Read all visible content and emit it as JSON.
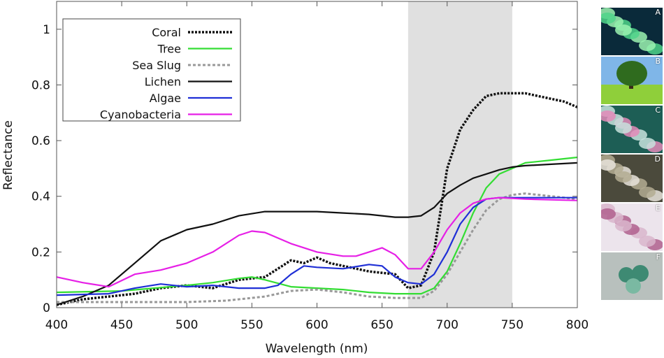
{
  "chart_data": {
    "type": "line",
    "title": "",
    "xlabel": "Wavelength (nm)",
    "ylabel": "Reflectance",
    "xlim": [
      400,
      800
    ],
    "ylim": [
      0,
      1.1
    ],
    "xticks": [
      400,
      450,
      500,
      550,
      600,
      650,
      700,
      750,
      800
    ],
    "xtick_labels": [
      "400",
      "450",
      "500",
      "550",
      "600",
      "650",
      "700",
      "750",
      "800"
    ],
    "yticks": [
      0,
      0.2,
      0.4,
      0.6,
      0.8,
      1
    ],
    "ytick_labels": [
      "0",
      "0.2",
      "0.4",
      "0.6",
      "0.8",
      "1"
    ],
    "grid": false,
    "legend_position": "top-left",
    "shaded_region": {
      "x": [
        670,
        750
      ],
      "color": "#e0e0e0"
    },
    "series": [
      {
        "name": "Coral",
        "color": "#111111",
        "style": "dotted",
        "x": [
          400,
          420,
          440,
          460,
          480,
          500,
          520,
          540,
          560,
          570,
          580,
          590,
          600,
          610,
          620,
          640,
          660,
          670,
          680,
          690,
          700,
          710,
          720,
          730,
          740,
          750,
          760,
          770,
          780,
          790,
          800
        ],
        "y": [
          0.01,
          0.03,
          0.04,
          0.05,
          0.07,
          0.08,
          0.07,
          0.1,
          0.11,
          0.14,
          0.17,
          0.16,
          0.18,
          0.16,
          0.15,
          0.13,
          0.12,
          0.07,
          0.08,
          0.2,
          0.5,
          0.64,
          0.71,
          0.76,
          0.77,
          0.77,
          0.77,
          0.76,
          0.75,
          0.74,
          0.72
        ]
      },
      {
        "name": "Tree",
        "color": "#33dd33",
        "style": "solid",
        "x": [
          400,
          450,
          500,
          520,
          540,
          550,
          560,
          580,
          600,
          620,
          640,
          660,
          680,
          690,
          700,
          710,
          720,
          730,
          740,
          750,
          760,
          780,
          800
        ],
        "y": [
          0.055,
          0.06,
          0.08,
          0.09,
          0.105,
          0.11,
          0.1,
          0.075,
          0.07,
          0.065,
          0.055,
          0.05,
          0.05,
          0.07,
          0.13,
          0.23,
          0.34,
          0.43,
          0.48,
          0.5,
          0.52,
          0.53,
          0.54
        ]
      },
      {
        "name": "Sea Slug",
        "color": "#999999",
        "style": "dashed",
        "x": [
          400,
          450,
          500,
          530,
          560,
          580,
          600,
          620,
          640,
          660,
          680,
          690,
          700,
          710,
          720,
          730,
          740,
          750,
          760,
          780,
          800
        ],
        "y": [
          0.02,
          0.02,
          0.02,
          0.025,
          0.04,
          0.06,
          0.065,
          0.055,
          0.04,
          0.035,
          0.035,
          0.06,
          0.12,
          0.2,
          0.28,
          0.35,
          0.39,
          0.405,
          0.41,
          0.4,
          0.39
        ]
      },
      {
        "name": "Lichen",
        "color": "#111111",
        "style": "solid",
        "x": [
          400,
          420,
          440,
          460,
          480,
          500,
          520,
          540,
          560,
          580,
          600,
          620,
          640,
          660,
          670,
          680,
          690,
          700,
          710,
          720,
          730,
          740,
          750,
          760,
          780,
          800
        ],
        "y": [
          0.01,
          0.04,
          0.08,
          0.16,
          0.24,
          0.28,
          0.3,
          0.33,
          0.345,
          0.345,
          0.345,
          0.34,
          0.335,
          0.325,
          0.325,
          0.33,
          0.36,
          0.41,
          0.44,
          0.465,
          0.48,
          0.495,
          0.505,
          0.51,
          0.515,
          0.52
        ]
      },
      {
        "name": "Algae",
        "color": "#1f2fd6",
        "style": "solid",
        "x": [
          400,
          440,
          460,
          480,
          500,
          520,
          540,
          560,
          570,
          580,
          590,
          600,
          620,
          640,
          650,
          660,
          670,
          680,
          690,
          700,
          710,
          720,
          730,
          740,
          760,
          800
        ],
        "y": [
          0.045,
          0.05,
          0.07,
          0.085,
          0.075,
          0.08,
          0.07,
          0.07,
          0.08,
          0.12,
          0.15,
          0.145,
          0.14,
          0.155,
          0.15,
          0.11,
          0.09,
          0.085,
          0.12,
          0.2,
          0.3,
          0.36,
          0.39,
          0.395,
          0.395,
          0.395
        ]
      },
      {
        "name": "Cyanobacteria",
        "color": "#e61fe6",
        "style": "solid",
        "x": [
          400,
          420,
          440,
          460,
          480,
          500,
          520,
          540,
          550,
          560,
          580,
          600,
          620,
          630,
          640,
          650,
          660,
          670,
          680,
          690,
          700,
          710,
          720,
          730,
          740,
          760,
          800
        ],
        "y": [
          0.11,
          0.09,
          0.075,
          0.12,
          0.135,
          0.16,
          0.2,
          0.26,
          0.275,
          0.27,
          0.23,
          0.2,
          0.185,
          0.185,
          0.2,
          0.215,
          0.19,
          0.14,
          0.14,
          0.2,
          0.28,
          0.34,
          0.375,
          0.39,
          0.395,
          0.39,
          0.385
        ]
      }
    ]
  },
  "thumbnails": [
    {
      "letter": "A",
      "subject": "coral",
      "colors": [
        "#0a2a3a",
        "#4fd48a",
        "#9bf2b0"
      ]
    },
    {
      "letter": "B",
      "subject": "tree",
      "colors": [
        "#7fb6e8",
        "#2f6b1e",
        "#8fcf3a"
      ]
    },
    {
      "letter": "C",
      "subject": "sea slug",
      "colors": [
        "#1d5e55",
        "#e38ab8",
        "#c7e2dd"
      ]
    },
    {
      "letter": "D",
      "subject": "lichen",
      "colors": [
        "#4b4a3c",
        "#e7e3da",
        "#b3ab92"
      ]
    },
    {
      "letter": "E",
      "subject": "algae",
      "colors": [
        "#ece4ec",
        "#b0608e",
        "#d9b6cc"
      ]
    },
    {
      "letter": "F",
      "subject": "cyanobacteria",
      "colors": [
        "#b8c0bd",
        "#3e8a73",
        "#7ab9a2"
      ]
    }
  ]
}
